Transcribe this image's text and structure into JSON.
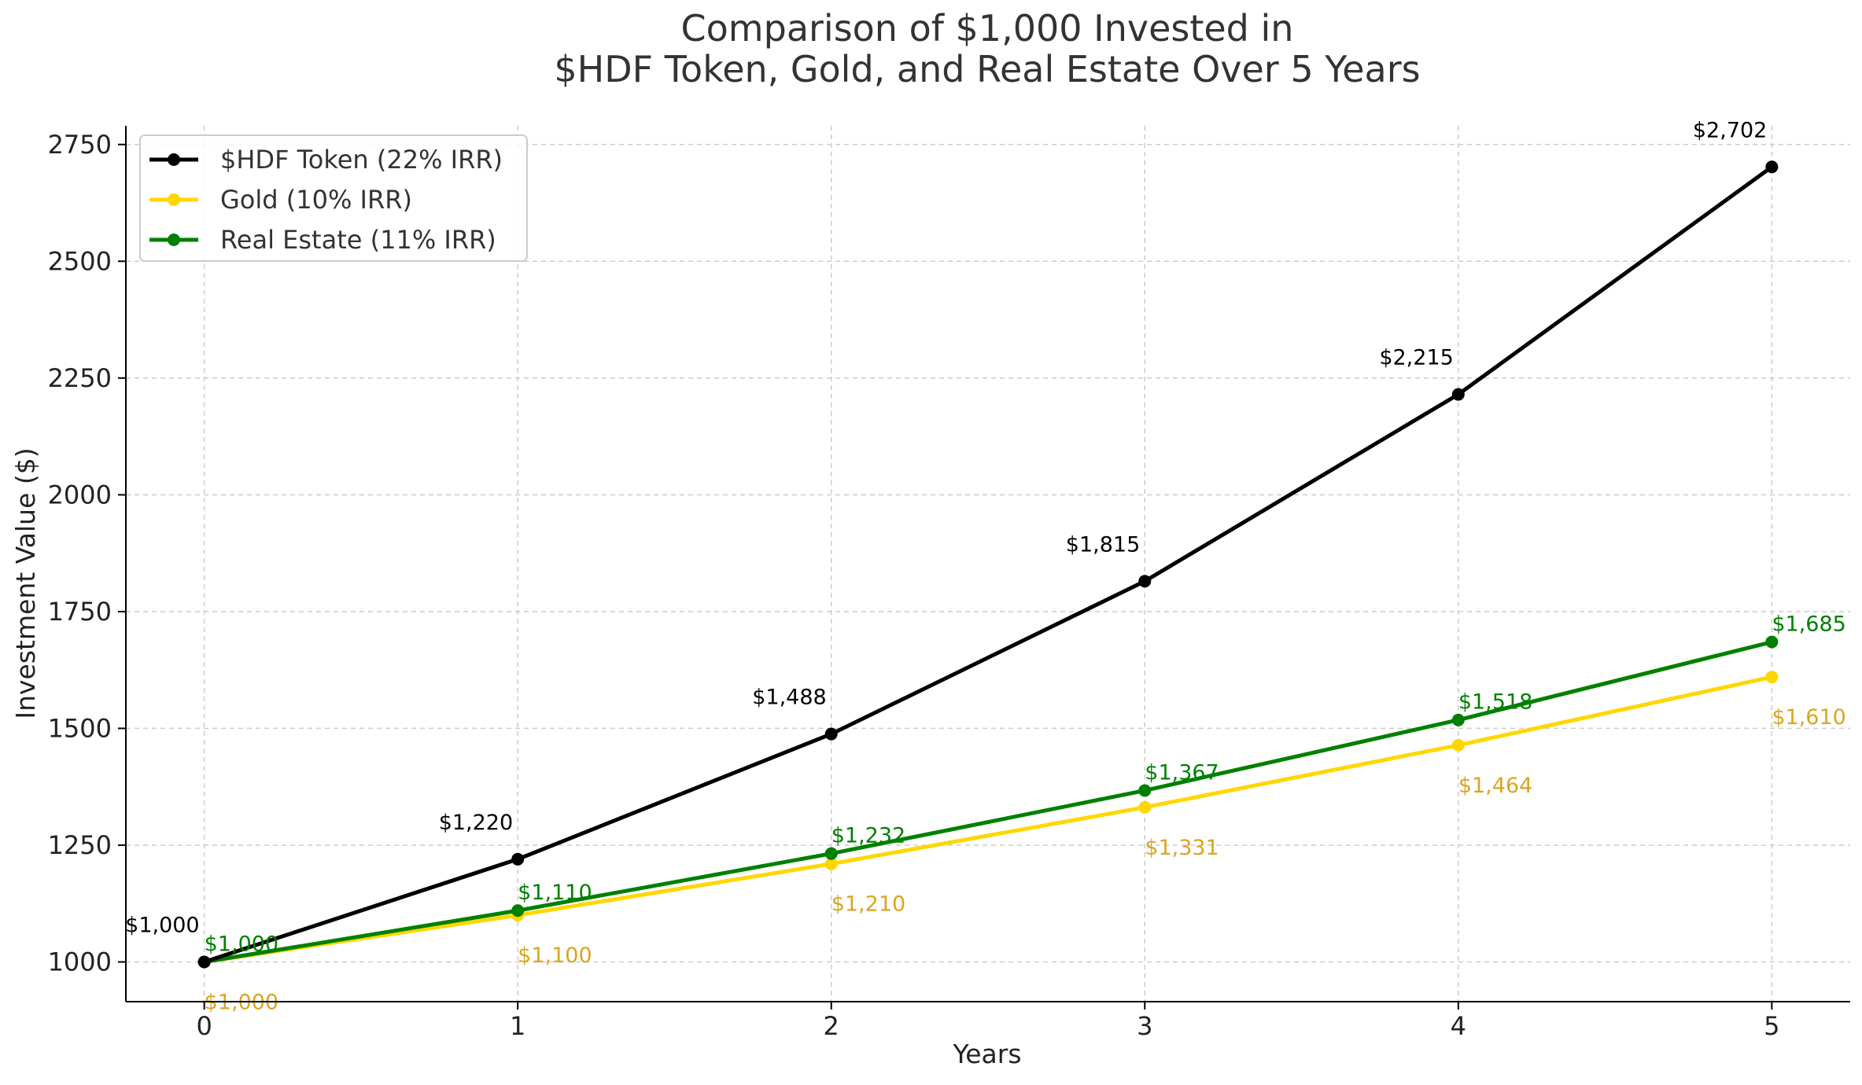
{
  "chart_data": {
    "type": "line",
    "title_lines": [
      "Comparison of $1,000 Invested in",
      "$HDF Token, Gold, and Real Estate Over 5 Years"
    ],
    "xlabel": "Years",
    "ylabel": "Investment Value ($)",
    "x": [
      0,
      1,
      2,
      3,
      4,
      5
    ],
    "x_tick_labels": [
      "0",
      "1",
      "2",
      "3",
      "4",
      "5"
    ],
    "xlim": [
      -0.25,
      5.25
    ],
    "ylim": [
      915,
      2790
    ],
    "y_ticks": [
      1000,
      1250,
      1500,
      1750,
      2000,
      2250,
      2500,
      2750
    ],
    "y_tick_labels": [
      "1000",
      "1250",
      "1500",
      "1750",
      "2000",
      "2250",
      "2500",
      "2750"
    ],
    "grid": true,
    "legend_position": "top-left",
    "series": [
      {
        "name": "$HDF Token (22% IRR)",
        "color": "#000000",
        "label_color": "#000000",
        "label_position": "above-left",
        "values": [
          1000,
          1220,
          1488,
          1815,
          2215,
          2702
        ],
        "labels": [
          "$1,000",
          "$1,220",
          "$1,488",
          "$1,815",
          "$2,215",
          "$2,702"
        ]
      },
      {
        "name": "Gold (10% IRR)",
        "color": "#FFD700",
        "label_color": "#DAA520",
        "label_position": "below",
        "values": [
          1000,
          1100,
          1210,
          1331,
          1464,
          1610
        ],
        "labels": [
          "$1,000",
          "$1,100",
          "$1,210",
          "$1,331",
          "$1,464",
          "$1,610"
        ]
      },
      {
        "name": "Real Estate (11% IRR)",
        "color": "#008000",
        "label_color": "#008000",
        "label_position": "above",
        "values": [
          1000,
          1110,
          1232,
          1367,
          1518,
          1685
        ],
        "labels": [
          "$1,000",
          "$1,110",
          "$1,232",
          "$1,367",
          "$1,518",
          "$1,685"
        ]
      }
    ]
  }
}
